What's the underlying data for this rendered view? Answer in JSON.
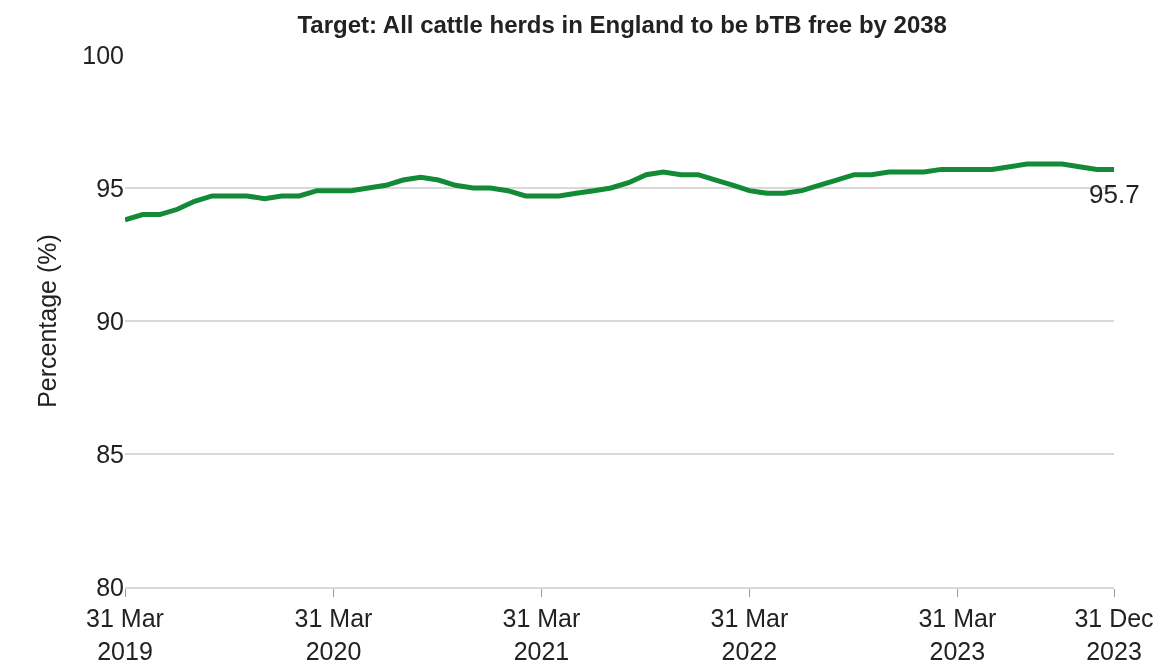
{
  "chart_data": {
    "type": "line",
    "title": "Target: All cattle herds in England to be bTB free by 2038",
    "ylabel": "Percentage (%)",
    "x": [
      "2019-03",
      "2019-04",
      "2019-05",
      "2019-06",
      "2019-07",
      "2019-08",
      "2019-09",
      "2019-10",
      "2019-11",
      "2019-12",
      "2020-01",
      "2020-02",
      "2020-03",
      "2020-04",
      "2020-05",
      "2020-06",
      "2020-07",
      "2020-08",
      "2020-09",
      "2020-10",
      "2020-11",
      "2020-12",
      "2021-01",
      "2021-02",
      "2021-03",
      "2021-04",
      "2021-05",
      "2021-06",
      "2021-07",
      "2021-08",
      "2021-09",
      "2021-10",
      "2021-11",
      "2021-12",
      "2022-01",
      "2022-02",
      "2022-03",
      "2022-04",
      "2022-05",
      "2022-06",
      "2022-07",
      "2022-08",
      "2022-09",
      "2022-10",
      "2022-11",
      "2022-12",
      "2023-01",
      "2023-02",
      "2023-03",
      "2023-04",
      "2023-05",
      "2023-06",
      "2023-07",
      "2023-08",
      "2023-09",
      "2023-10",
      "2023-11",
      "2023-12"
    ],
    "series": [
      {
        "color": "#138a36",
        "values": [
          93.8,
          94.0,
          94.0,
          94.2,
          94.5,
          94.7,
          94.7,
          94.7,
          94.6,
          94.7,
          94.7,
          94.9,
          94.9,
          94.9,
          95.0,
          95.1,
          95.3,
          95.4,
          95.3,
          95.1,
          95.0,
          95.0,
          94.9,
          94.7,
          94.7,
          94.7,
          94.8,
          94.9,
          95.0,
          95.2,
          95.5,
          95.6,
          95.5,
          95.5,
          95.3,
          95.1,
          94.9,
          94.8,
          94.8,
          94.9,
          95.1,
          95.3,
          95.5,
          95.5,
          95.6,
          95.6,
          95.6,
          95.7,
          95.7,
          95.7,
          95.7,
          95.8,
          95.9,
          95.9,
          95.9,
          95.8,
          95.7,
          95.7
        ],
        "value_labels": [
          null,
          null,
          null,
          null,
          null,
          null,
          null,
          null,
          null,
          null,
          null,
          null,
          null,
          null,
          null,
          null,
          null,
          null,
          null,
          null,
          null,
          null,
          null,
          null,
          null,
          null,
          null,
          null,
          null,
          null,
          null,
          null,
          null,
          null,
          null,
          null,
          null,
          null,
          null,
          null,
          null,
          null,
          null,
          null,
          null,
          null,
          null,
          null,
          null,
          null,
          null,
          null,
          null,
          null,
          null,
          null,
          null,
          "95.7"
        ]
      }
    ],
    "xlim": [
      "2019-03",
      "2023-12"
    ],
    "xticks": [
      {
        "value": "2019-03",
        "label": "31 Mar\n2019"
      },
      {
        "value": "2020-03",
        "label": "31 Mar\n2020"
      },
      {
        "value": "2021-03",
        "label": "31 Mar\n2021"
      },
      {
        "value": "2022-03",
        "label": "31 Mar\n2022"
      },
      {
        "value": "2023-03",
        "label": "31 Mar\n2023"
      },
      {
        "value": "2023-12",
        "label": "31 Dec\n2023"
      }
    ],
    "ylim": [
      80,
      100
    ],
    "yticks": [
      80,
      85,
      90,
      95,
      100
    ],
    "grid": "y",
    "marker": "none",
    "line_style": "solid"
  }
}
